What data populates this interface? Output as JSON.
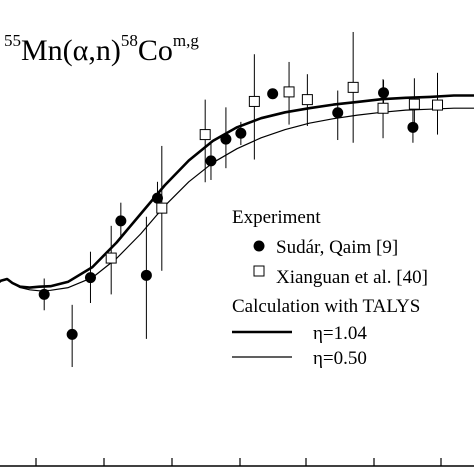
{
  "chart_data": {
    "type": "scatter",
    "title": {
      "parts": [
        {
          "text": "55",
          "sup": true
        },
        {
          "text": "Mn(α,n)",
          "sup": false
        },
        {
          "text": "58",
          "sup": true
        },
        {
          "text": "Co",
          "sup": false
        },
        {
          "text": "m,g",
          "sup": true
        }
      ]
    },
    "legend": {
      "experiment_header": "Experiment",
      "calculation_header": "Calculation with TALYS",
      "placement": "right"
    },
    "axes": {
      "x_range": [
        0,
        100
      ],
      "y_range": [
        0,
        100
      ],
      "grid": false,
      "note": "axis tick labels are cut off in the image; values are in relative units estimated from the frame"
    },
    "series": [
      {
        "name": "Sudár, Qaim [9]",
        "marker": "filled-circle",
        "points": [
          {
            "x": 10.0,
            "y": 37.8,
            "ylo": 34.3,
            "yhi": 41.3
          },
          {
            "x": 15.8,
            "y": 29.0,
            "ylo": 21.8,
            "yhi": 35.5
          },
          {
            "x": 19.6,
            "y": 41.5,
            "ylo": 35.9,
            "yhi": 47.2
          },
          {
            "x": 25.9,
            "y": 54.0,
            "ylo": 50.0,
            "yhi": 58.0
          },
          {
            "x": 31.2,
            "y": 42.0,
            "ylo": 28.0,
            "yhi": 54.9
          },
          {
            "x": 33.5,
            "y": 59.0,
            "ylo": 55.6,
            "yhi": 62.6
          },
          {
            "x": 44.6,
            "y": 67.2,
            "ylo": 63.0,
            "yhi": 71.4
          },
          {
            "x": 47.7,
            "y": 72.0,
            "ylo": 65.6,
            "yhi": 79.0
          },
          {
            "x": 50.8,
            "y": 73.3,
            "ylo": 70.7,
            "yhi": 75.8
          },
          {
            "x": 57.4,
            "y": 82.0,
            "ylo": 81.0,
            "yhi": 83.1
          },
          {
            "x": 70.9,
            "y": 77.8,
            "ylo": 71.8,
            "yhi": 82.7
          },
          {
            "x": 80.4,
            "y": 82.2,
            "ylo": 79.2,
            "yhi": 85.0
          },
          {
            "x": 86.5,
            "y": 74.6,
            "ylo": 71.2,
            "yhi": 78.5
          }
        ]
      },
      {
        "name": "Xianguan et al. [40]",
        "marker": "open-square",
        "points": [
          {
            "x": 23.9,
            "y": 45.8,
            "ylo": 37.8,
            "yhi": 52.9
          },
          {
            "x": 34.4,
            "y": 56.8,
            "ylo": 43.0,
            "yhi": 70.5
          },
          {
            "x": 43.4,
            "y": 73.0,
            "ylo": 62.5,
            "yhi": 80.7
          },
          {
            "x": 53.6,
            "y": 80.3,
            "ylo": 67.5,
            "yhi": 90.7
          },
          {
            "x": 60.8,
            "y": 82.4,
            "ylo": 75.2,
            "yhi": 89.0
          },
          {
            "x": 64.6,
            "y": 80.7,
            "ylo": 74.9,
            "yhi": 86.3
          },
          {
            "x": 74.1,
            "y": 83.4,
            "ylo": 71.2,
            "yhi": 95.6
          },
          {
            "x": 80.3,
            "y": 78.8,
            "ylo": 72.2,
            "yhi": 85.2
          },
          {
            "x": 86.8,
            "y": 79.7,
            "ylo": 74.0,
            "yhi": 85.4
          },
          {
            "x": 91.6,
            "y": 79.5,
            "ylo": 73.0,
            "yhi": 86.6
          }
        ]
      },
      {
        "name": "η=1.04",
        "style": "thick-line",
        "points": [
          {
            "x": 0.0,
            "y": 40.0
          },
          {
            "x": 1.0,
            "y": 40.8
          },
          {
            "x": 2.3,
            "y": 41.2
          },
          {
            "x": 3.4,
            "y": 40.3
          },
          {
            "x": 5.0,
            "y": 39.5
          },
          {
            "x": 7.0,
            "y": 39.3
          },
          {
            "x": 9.0,
            "y": 39.5
          },
          {
            "x": 11.3,
            "y": 39.6
          },
          {
            "x": 15.0,
            "y": 40.6
          },
          {
            "x": 20.0,
            "y": 43.8
          },
          {
            "x": 25.0,
            "y": 49.2
          },
          {
            "x": 30.0,
            "y": 55.5
          },
          {
            "x": 35.0,
            "y": 61.8
          },
          {
            "x": 40.0,
            "y": 67.3
          },
          {
            "x": 45.0,
            "y": 71.6
          },
          {
            "x": 50.0,
            "y": 74.6
          },
          {
            "x": 55.0,
            "y": 76.6
          },
          {
            "x": 60.0,
            "y": 77.9
          },
          {
            "x": 65.0,
            "y": 78.8
          },
          {
            "x": 70.0,
            "y": 79.6
          },
          {
            "x": 75.0,
            "y": 80.2
          },
          {
            "x": 80.0,
            "y": 80.8
          },
          {
            "x": 85.0,
            "y": 81.1
          },
          {
            "x": 90.0,
            "y": 81.3
          },
          {
            "x": 95.0,
            "y": 81.6
          },
          {
            "x": 100.0,
            "y": 81.6
          }
        ]
      },
      {
        "name": "η=0.50",
        "style": "thin-line",
        "points": [
          {
            "x": 0.0,
            "y": 40.0
          },
          {
            "x": 1.0,
            "y": 40.8
          },
          {
            "x": 2.3,
            "y": 41.2
          },
          {
            "x": 3.4,
            "y": 40.3
          },
          {
            "x": 5.0,
            "y": 39.3
          },
          {
            "x": 7.0,
            "y": 38.8
          },
          {
            "x": 9.0,
            "y": 38.6
          },
          {
            "x": 11.3,
            "y": 38.7
          },
          {
            "x": 15.0,
            "y": 39.3
          },
          {
            "x": 20.0,
            "y": 41.5
          },
          {
            "x": 25.0,
            "y": 45.7
          },
          {
            "x": 30.0,
            "y": 51.1
          },
          {
            "x": 35.0,
            "y": 57.3
          },
          {
            "x": 40.0,
            "y": 62.6
          },
          {
            "x": 45.0,
            "y": 66.8
          },
          {
            "x": 50.0,
            "y": 69.9
          },
          {
            "x": 55.0,
            "y": 72.3
          },
          {
            "x": 60.0,
            "y": 74.1
          },
          {
            "x": 65.0,
            "y": 75.5
          },
          {
            "x": 70.0,
            "y": 76.5
          },
          {
            "x": 75.0,
            "y": 77.3
          },
          {
            "x": 80.0,
            "y": 77.9
          },
          {
            "x": 85.0,
            "y": 78.4
          },
          {
            "x": 90.0,
            "y": 78.6
          },
          {
            "x": 95.0,
            "y": 78.8
          },
          {
            "x": 100.0,
            "y": 78.8
          }
        ]
      }
    ]
  }
}
